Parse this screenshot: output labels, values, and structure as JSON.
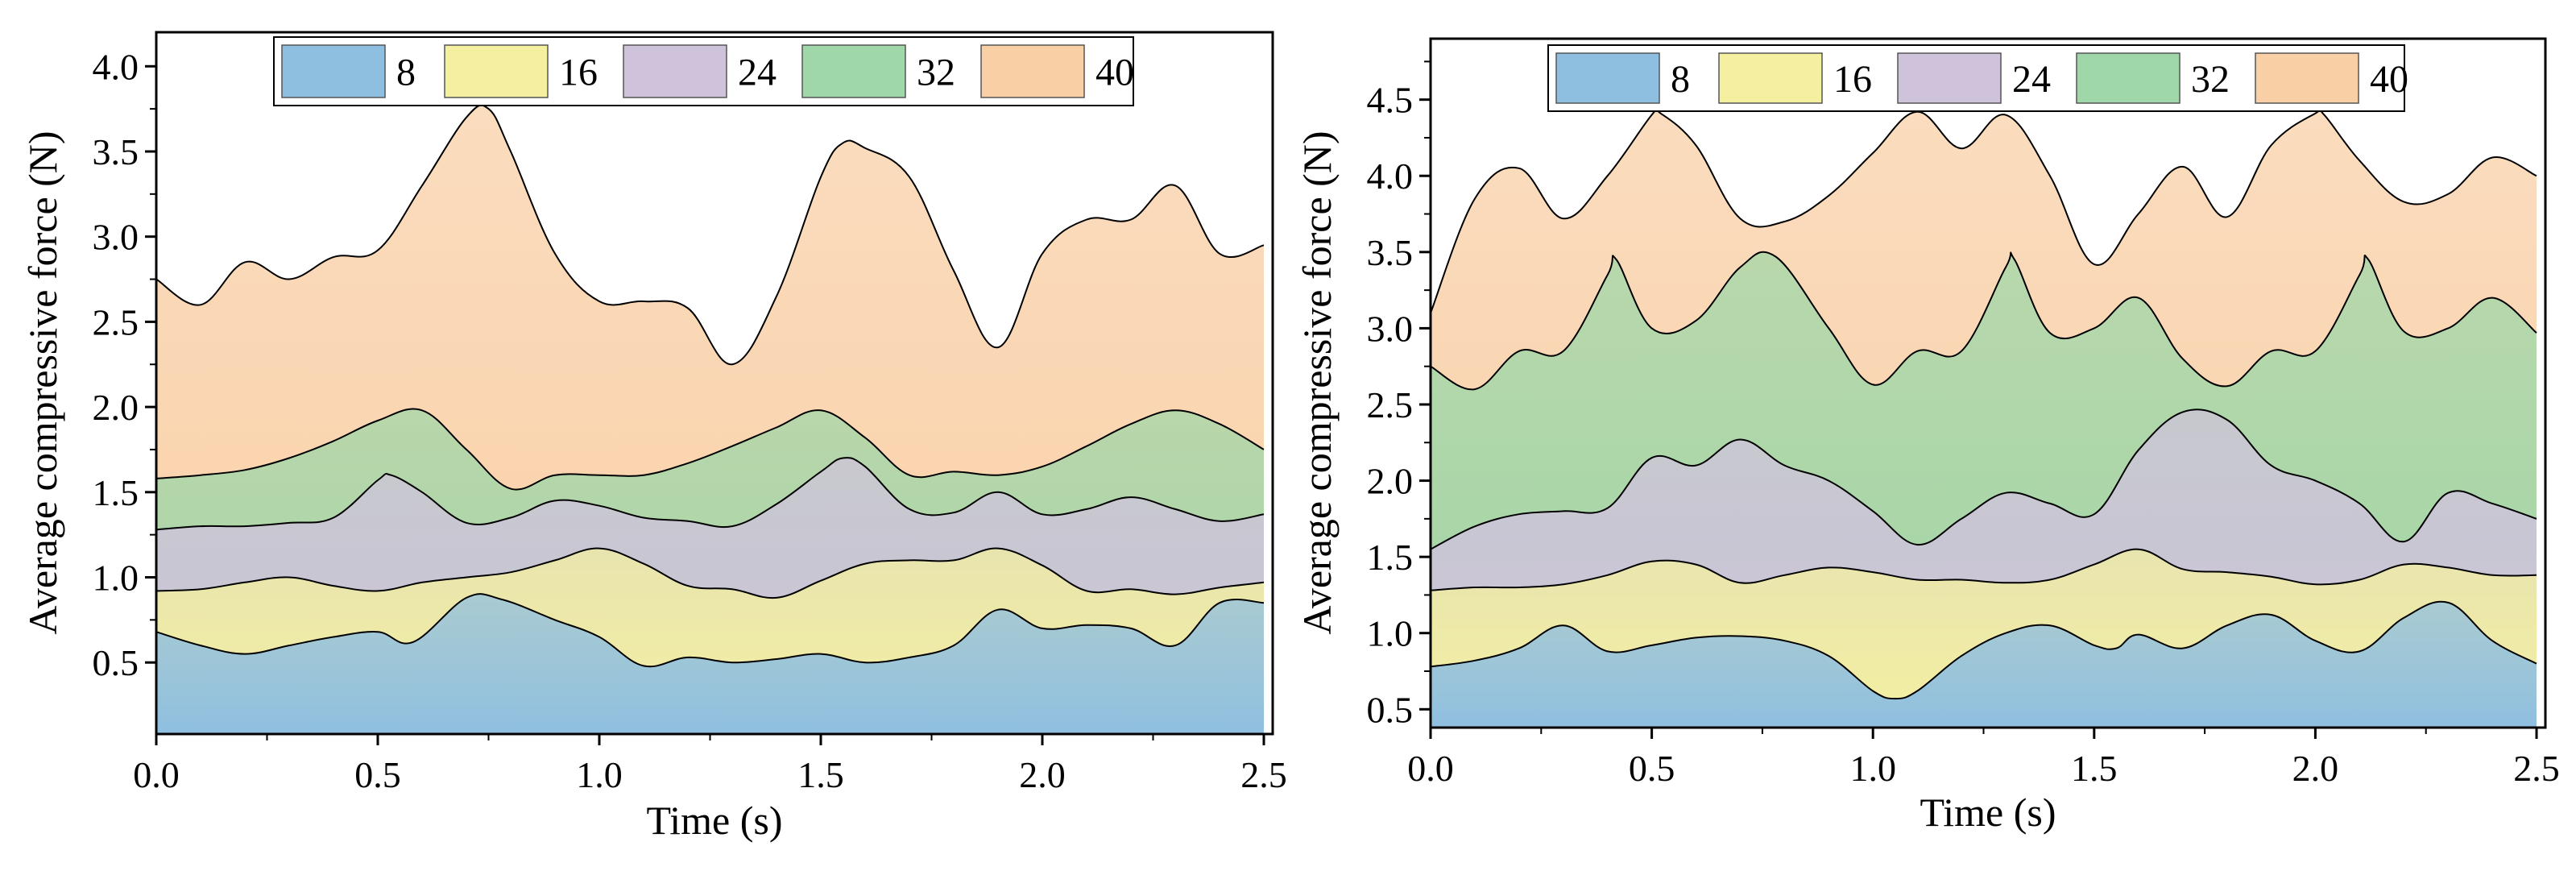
{
  "colors": {
    "8": "#8fbfe0",
    "16": "#f4f0a0",
    "24": "#cfc3dc",
    "32": "#9fd7a8",
    "40": "#f9cfa5"
  },
  "chart_data": [
    {
      "type": "area",
      "title": "",
      "xlabel": "Time (s)",
      "ylabel": "Average compressive force (N)",
      "xlim": [
        0.0,
        2.52
      ],
      "ylim": [
        0.08,
        4.2
      ],
      "xticks": [
        "0.0",
        "0.5",
        "1.0",
        "1.5",
        "2.0",
        "2.5"
      ],
      "yticks": [
        "0.5",
        "1.0",
        "1.5",
        "2.0",
        "2.5",
        "3.0",
        "3.5",
        "4.0"
      ],
      "legend": {
        "position": "top",
        "entries": [
          "8",
          "16",
          "24",
          "32",
          "40"
        ]
      },
      "series": [
        {
          "name": "8",
          "x": [
            0.0,
            0.1,
            0.2,
            0.3,
            0.4,
            0.5,
            0.58,
            0.7,
            0.78,
            0.9,
            1.0,
            1.1,
            1.2,
            1.3,
            1.4,
            1.5,
            1.6,
            1.7,
            1.8,
            1.9,
            2.0,
            2.1,
            2.2,
            2.3,
            2.4,
            2.5
          ],
          "values": [
            0.68,
            0.6,
            0.55,
            0.6,
            0.65,
            0.68,
            0.62,
            0.88,
            0.87,
            0.75,
            0.65,
            0.48,
            0.53,
            0.5,
            0.52,
            0.55,
            0.5,
            0.53,
            0.6,
            0.81,
            0.7,
            0.72,
            0.7,
            0.6,
            0.85,
            0.85
          ]
        },
        {
          "name": "16",
          "x": [
            0.0,
            0.1,
            0.2,
            0.3,
            0.4,
            0.5,
            0.6,
            0.7,
            0.8,
            0.9,
            1.0,
            1.1,
            1.2,
            1.3,
            1.4,
            1.5,
            1.6,
            1.7,
            1.8,
            1.9,
            2.0,
            2.1,
            2.2,
            2.3,
            2.4,
            2.5
          ],
          "values": [
            0.92,
            0.93,
            0.97,
            1.0,
            0.95,
            0.92,
            0.97,
            1.0,
            1.03,
            1.1,
            1.17,
            1.08,
            0.95,
            0.93,
            0.88,
            0.98,
            1.08,
            1.1,
            1.1,
            1.17,
            1.07,
            0.92,
            0.93,
            0.9,
            0.94,
            0.97
          ]
        },
        {
          "name": "24",
          "x": [
            0.0,
            0.1,
            0.2,
            0.3,
            0.4,
            0.5,
            0.53,
            0.6,
            0.7,
            0.8,
            0.9,
            1.0,
            1.1,
            1.2,
            1.3,
            1.4,
            1.5,
            1.55,
            1.6,
            1.7,
            1.8,
            1.9,
            2.0,
            2.1,
            2.2,
            2.3,
            2.4,
            2.5
          ],
          "values": [
            1.28,
            1.3,
            1.3,
            1.32,
            1.35,
            1.57,
            1.6,
            1.5,
            1.32,
            1.35,
            1.45,
            1.42,
            1.35,
            1.33,
            1.3,
            1.43,
            1.62,
            1.7,
            1.65,
            1.4,
            1.38,
            1.5,
            1.37,
            1.4,
            1.47,
            1.4,
            1.33,
            1.37
          ]
        },
        {
          "name": "32",
          "x": [
            0.0,
            0.1,
            0.2,
            0.3,
            0.4,
            0.5,
            0.6,
            0.7,
            0.8,
            0.9,
            1.0,
            1.1,
            1.2,
            1.3,
            1.4,
            1.5,
            1.6,
            1.7,
            1.8,
            1.9,
            2.0,
            2.1,
            2.2,
            2.3,
            2.4,
            2.5
          ],
          "values": [
            1.58,
            1.6,
            1.63,
            1.7,
            1.8,
            1.92,
            1.98,
            1.75,
            1.52,
            1.6,
            1.6,
            1.6,
            1.67,
            1.77,
            1.88,
            1.98,
            1.82,
            1.6,
            1.62,
            1.6,
            1.65,
            1.77,
            1.9,
            1.98,
            1.9,
            1.75
          ]
        },
        {
          "name": "40",
          "x": [
            0.0,
            0.1,
            0.2,
            0.3,
            0.4,
            0.5,
            0.6,
            0.7,
            0.75,
            0.8,
            0.9,
            1.0,
            1.1,
            1.2,
            1.3,
            1.4,
            1.5,
            1.55,
            1.6,
            1.7,
            1.8,
            1.9,
            2.0,
            2.1,
            2.2,
            2.3,
            2.4,
            2.5
          ],
          "values": [
            2.75,
            2.6,
            2.85,
            2.75,
            2.88,
            2.92,
            3.3,
            3.7,
            3.75,
            3.5,
            2.9,
            2.62,
            2.62,
            2.58,
            2.25,
            2.65,
            3.35,
            3.55,
            3.52,
            3.35,
            2.8,
            2.35,
            2.9,
            3.1,
            3.1,
            3.3,
            2.9,
            2.95
          ]
        }
      ]
    },
    {
      "type": "area",
      "title": "",
      "xlabel": "Time (s)",
      "ylabel": "Average compressive force (N)",
      "xlim": [
        0.0,
        2.52
      ],
      "ylim": [
        0.38,
        4.9
      ],
      "xticks": [
        "0.0",
        "0.5",
        "1.0",
        "1.5",
        "2.0",
        "2.5"
      ],
      "yticks": [
        "0.5",
        "1.0",
        "1.5",
        "2.0",
        "2.5",
        "3.0",
        "3.5",
        "4.0",
        "4.5"
      ],
      "legend": {
        "position": "top",
        "entries": [
          "8",
          "16",
          "24",
          "32",
          "40"
        ]
      },
      "series": [
        {
          "name": "8",
          "x": [
            0.0,
            0.1,
            0.2,
            0.3,
            0.4,
            0.5,
            0.6,
            0.7,
            0.8,
            0.9,
            1.0,
            1.05,
            1.1,
            1.2,
            1.3,
            1.4,
            1.5,
            1.55,
            1.6,
            1.7,
            1.8,
            1.9,
            2.0,
            2.1,
            2.2,
            2.3,
            2.4,
            2.5
          ],
          "values": [
            0.78,
            0.82,
            0.9,
            1.05,
            0.88,
            0.92,
            0.97,
            0.98,
            0.95,
            0.85,
            0.62,
            0.57,
            0.62,
            0.85,
            1.0,
            1.05,
            0.92,
            0.9,
            0.99,
            0.9,
            1.05,
            1.12,
            0.95,
            0.88,
            1.1,
            1.2,
            0.95,
            0.8
          ]
        },
        {
          "name": "16",
          "x": [
            0.0,
            0.1,
            0.2,
            0.3,
            0.4,
            0.5,
            0.6,
            0.7,
            0.8,
            0.9,
            1.0,
            1.1,
            1.2,
            1.3,
            1.4,
            1.5,
            1.6,
            1.7,
            1.8,
            1.9,
            2.0,
            2.1,
            2.2,
            2.3,
            2.4,
            2.5
          ],
          "values": [
            1.28,
            1.3,
            1.3,
            1.32,
            1.38,
            1.47,
            1.45,
            1.33,
            1.38,
            1.43,
            1.4,
            1.35,
            1.35,
            1.33,
            1.35,
            1.45,
            1.55,
            1.42,
            1.4,
            1.37,
            1.32,
            1.35,
            1.45,
            1.43,
            1.38,
            1.38
          ]
        },
        {
          "name": "24",
          "x": [
            0.0,
            0.1,
            0.2,
            0.3,
            0.4,
            0.5,
            0.6,
            0.7,
            0.8,
            0.9,
            1.0,
            1.1,
            1.2,
            1.3,
            1.4,
            1.5,
            1.6,
            1.7,
            1.8,
            1.9,
            2.0,
            2.1,
            2.2,
            2.3,
            2.4,
            2.5
          ],
          "values": [
            1.55,
            1.7,
            1.78,
            1.8,
            1.82,
            2.15,
            2.1,
            2.27,
            2.1,
            2.0,
            1.8,
            1.58,
            1.75,
            1.92,
            1.85,
            1.78,
            2.2,
            2.45,
            2.4,
            2.1,
            2.0,
            1.85,
            1.6,
            1.92,
            1.85,
            1.75
          ]
        },
        {
          "name": "32",
          "x": [
            0.0,
            0.1,
            0.2,
            0.3,
            0.4,
            0.42,
            0.5,
            0.6,
            0.7,
            0.78,
            0.9,
            1.0,
            1.1,
            1.2,
            1.3,
            1.32,
            1.4,
            1.5,
            1.6,
            1.7,
            1.8,
            1.9,
            2.0,
            2.1,
            2.12,
            2.2,
            2.3,
            2.4,
            2.5
          ],
          "values": [
            2.75,
            2.6,
            2.85,
            2.85,
            3.35,
            3.45,
            3.0,
            3.05,
            3.4,
            3.47,
            3.0,
            2.63,
            2.85,
            2.85,
            3.4,
            3.45,
            2.97,
            3.0,
            3.2,
            2.8,
            2.62,
            2.85,
            2.85,
            3.35,
            3.45,
            2.98,
            3.0,
            3.2,
            2.97
          ]
        },
        {
          "name": "40",
          "x": [
            0.0,
            0.1,
            0.2,
            0.3,
            0.4,
            0.5,
            0.52,
            0.6,
            0.7,
            0.8,
            0.9,
            1.0,
            1.1,
            1.2,
            1.3,
            1.4,
            1.5,
            1.6,
            1.7,
            1.8,
            1.9,
            2.0,
            2.02,
            2.1,
            2.2,
            2.3,
            2.4,
            2.5
          ],
          "values": [
            3.1,
            3.85,
            4.05,
            3.72,
            4.0,
            4.4,
            4.41,
            4.2,
            3.72,
            3.7,
            3.87,
            4.15,
            4.42,
            4.18,
            4.4,
            4.0,
            3.42,
            3.75,
            4.06,
            3.73,
            4.2,
            4.41,
            4.4,
            4.1,
            3.83,
            3.88,
            4.12,
            4.0
          ]
        }
      ]
    }
  ]
}
